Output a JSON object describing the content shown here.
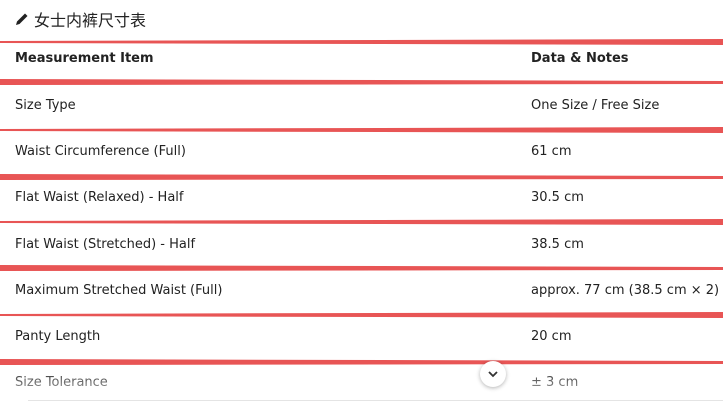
{
  "header": {
    "title": "女士内裤尺寸表"
  },
  "table": {
    "columns": [
      "Measurement Item",
      "Data & Notes"
    ],
    "rows": [
      [
        "Size Type",
        "One Size / Free Size"
      ],
      [
        "Waist Circumference (Full)",
        "61 cm"
      ],
      [
        "Flat Waist (Relaxed) - Half",
        "30.5 cm"
      ],
      [
        "Flat Waist (Stretched) - Half",
        "38.5 cm"
      ],
      [
        "Maximum Stretched Waist (Full)",
        "approx. 77 cm (38.5 cm × 2)"
      ],
      [
        "Panty Length",
        "20 cm"
      ],
      [
        "Size Tolerance",
        "± 3 cm"
      ]
    ]
  }
}
